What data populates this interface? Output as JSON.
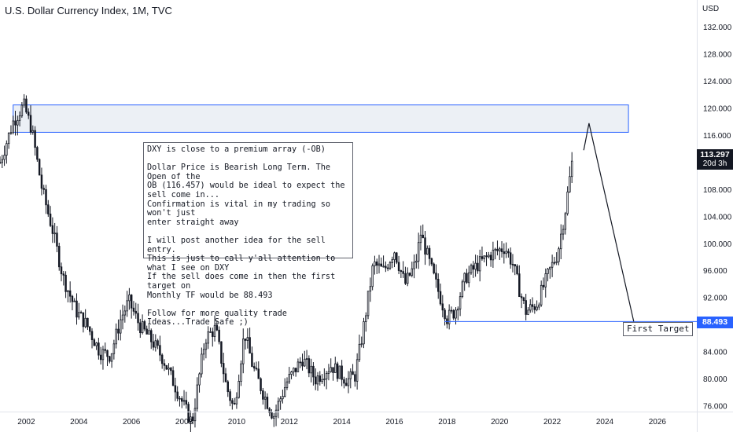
{
  "chart_data": {
    "type": "candlestick",
    "title": "U.S. Dollar Currency Index, 1M, TVC",
    "unit": "USD",
    "x_ticks": [
      "2002",
      "2004",
      "2006",
      "2008",
      "2010",
      "2012",
      "2014",
      "2016",
      "2018",
      "2020",
      "2022",
      "2024",
      "2026"
    ],
    "y_ticks": [
      "132.000",
      "128.000",
      "124.000",
      "120.000",
      "116.000",
      "112.000",
      "108.000",
      "104.000",
      "100.000",
      "96.000",
      "92.000",
      "88.000",
      "84.000",
      "80.000",
      "76.000"
    ],
    "x_range": [
      2001.0,
      2027.5
    ],
    "y_range": [
      75.2,
      136.0
    ],
    "price_path": [
      [
        2001.0,
        112.0
      ],
      [
        2001.5,
        118.0
      ],
      [
        2001.9,
        120.5
      ],
      [
        2002.2,
        117.0
      ],
      [
        2002.6,
        108.0
      ],
      [
        2003.0,
        102.0
      ],
      [
        2003.4,
        95.0
      ],
      [
        2003.9,
        90.0
      ],
      [
        2004.3,
        88.0
      ],
      [
        2004.8,
        84.0
      ],
      [
        2005.2,
        83.5
      ],
      [
        2005.6,
        89.0
      ],
      [
        2005.9,
        91.5
      ],
      [
        2006.3,
        88.0
      ],
      [
        2006.8,
        85.5
      ],
      [
        2007.2,
        83.0
      ],
      [
        2007.6,
        79.5
      ],
      [
        2008.0,
        76.0
      ],
      [
        2008.3,
        73.5
      ],
      [
        2008.8,
        86.0
      ],
      [
        2009.2,
        87.5
      ],
      [
        2009.6,
        79.0
      ],
      [
        2009.9,
        75.5
      ],
      [
        2010.3,
        87.0
      ],
      [
        2010.6,
        82.0
      ],
      [
        2011.0,
        78.0
      ],
      [
        2011.4,
        74.5
      ],
      [
        2011.9,
        79.5
      ],
      [
        2012.5,
        83.0
      ],
      [
        2013.0,
        80.0
      ],
      [
        2013.6,
        82.0
      ],
      [
        2014.2,
        79.8
      ],
      [
        2014.5,
        80.5
      ],
      [
        2014.8,
        87.0
      ],
      [
        2015.2,
        97.0
      ],
      [
        2015.6,
        96.0
      ],
      [
        2016.0,
        99.0
      ],
      [
        2016.4,
        94.0
      ],
      [
        2016.8,
        97.0
      ],
      [
        2017.0,
        101.5
      ],
      [
        2017.5,
        95.0
      ],
      [
        2018.0,
        89.0
      ],
      [
        2018.3,
        90.0
      ],
      [
        2018.7,
        95.0
      ],
      [
        2019.2,
        97.0
      ],
      [
        2019.7,
        98.5
      ],
      [
        2020.2,
        99.5
      ],
      [
        2020.5,
        97.0
      ],
      [
        2020.8,
        92.5
      ],
      [
        2021.0,
        90.0
      ],
      [
        2021.4,
        91.0
      ],
      [
        2021.9,
        96.0
      ],
      [
        2022.2,
        98.5
      ],
      [
        2022.5,
        105.0
      ],
      [
        2022.8,
        113.297
      ]
    ],
    "last_price": "113.297",
    "last_price_time": "20d 3h",
    "order_block_zone": {
      "from_year": 2001.5,
      "to_year": 2024.9,
      "low": 116.457,
      "high": 120.5
    },
    "projection_path": [
      [
        2023.2,
        113.8
      ],
      [
        2023.4,
        117.8
      ],
      [
        2025.1,
        88.493
      ]
    ],
    "first_target": {
      "value": "88.493",
      "label": "First Target",
      "from_year": 2017.9,
      "to_year": 2027.0
    },
    "annotation": "DXY is close to a premium array (-OB)\n\nDollar Price is Bearish Long Term. The Open of the\nOB (116.457) would be ideal to expect the sell come in...\nConfirmation is vital in my trading so won't just\nenter straight away\n\nI will post another idea for the sell entry.\nThis is just to call y'all attention to what I see on DXY\nIf the sell does come in then the first target on\nMonthly TF would be 88.493\n\nFollow for more quality trade Ideas...Trade Safe ;)",
    "colors": {
      "candle": "#131722",
      "zone_fill": "#e9edf3",
      "zone_border": "#2962ff",
      "target_line": "#2962ff",
      "projection": "#131722"
    }
  }
}
